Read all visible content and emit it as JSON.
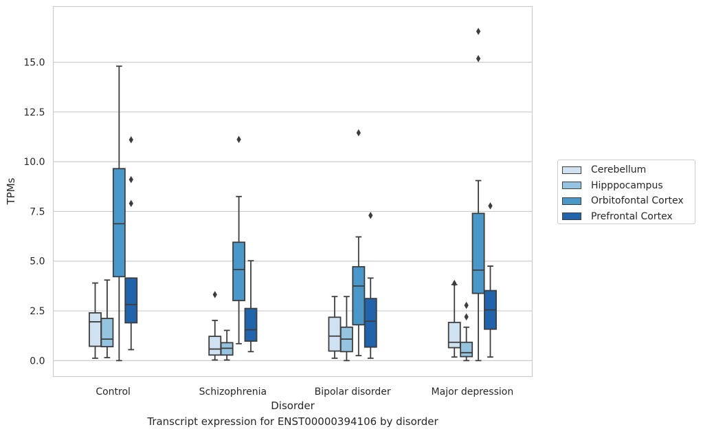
{
  "chart_data": {
    "type": "box",
    "title": "",
    "caption": "Transcript expression for ENST00000394106 by disorder",
    "xlabel": "Disorder",
    "ylabel": "TPMs",
    "ylim": [
      -0.8,
      17.8
    ],
    "yticks": [
      "0.0",
      "2.5",
      "5.0",
      "7.5",
      "10.0",
      "12.5",
      "15.0"
    ],
    "grid": "horizontal",
    "legend_position": "right",
    "categories": [
      "Control",
      "Schizophrenia",
      "Bipolar disorder",
      "Major depression"
    ],
    "series": [
      {
        "name": "Cerebellum",
        "color": "#d0e1f2",
        "boxes": [
          {
            "min": 0.12,
            "q1": 0.72,
            "median": 1.95,
            "q3": 2.4,
            "max": 3.9,
            "outliers": []
          },
          {
            "min": 0.03,
            "q1": 0.28,
            "median": 0.58,
            "q3": 1.22,
            "max": 2.02,
            "outliers": [
              3.32
            ]
          },
          {
            "min": 0.12,
            "q1": 0.48,
            "median": 1.23,
            "q3": 2.18,
            "max": 3.22,
            "outliers": []
          },
          {
            "min": 0.18,
            "q1": 0.65,
            "median": 0.92,
            "q3": 1.92,
            "max": 3.82,
            "outliers": [
              3.88
            ]
          }
        ]
      },
      {
        "name": "Hipppocampus",
        "color": "#94c4df",
        "boxes": [
          {
            "min": 0.15,
            "q1": 0.7,
            "median": 1.08,
            "q3": 2.12,
            "max": 4.05,
            "outliers": []
          },
          {
            "min": 0.03,
            "q1": 0.28,
            "median": 0.62,
            "q3": 0.9,
            "max": 1.52,
            "outliers": []
          },
          {
            "min": 0.0,
            "q1": 0.45,
            "median": 1.08,
            "q3": 1.68,
            "max": 3.22,
            "outliers": []
          },
          {
            "min": 0.0,
            "q1": 0.2,
            "median": 0.4,
            "q3": 0.92,
            "max": 1.68,
            "outliers": [
              2.78,
              2.2
            ]
          }
        ]
      },
      {
        "name": "Orbitofontal Cortex",
        "color": "#4a98c9",
        "boxes": [
          {
            "min": 0.0,
            "q1": 4.22,
            "median": 6.88,
            "q3": 9.65,
            "max": 14.8,
            "outliers": []
          },
          {
            "min": 0.85,
            "q1": 3.02,
            "median": 4.58,
            "q3": 5.95,
            "max": 8.25,
            "outliers": [
              11.12
            ]
          },
          {
            "min": 0.25,
            "q1": 1.8,
            "median": 3.75,
            "q3": 4.72,
            "max": 6.22,
            "outliers": [
              11.45
            ]
          },
          {
            "min": 0.0,
            "q1": 3.38,
            "median": 4.55,
            "q3": 7.4,
            "max": 9.05,
            "outliers": [
              15.18,
              16.55
            ]
          }
        ]
      },
      {
        "name": "Prefrontal Cortex",
        "color": "#2164ab",
        "boxes": [
          {
            "min": 0.55,
            "q1": 1.9,
            "median": 2.82,
            "q3": 4.15,
            "max": 4.15,
            "outliers": [
              7.9,
              9.1,
              11.1
            ]
          },
          {
            "min": 0.45,
            "q1": 0.98,
            "median": 1.55,
            "q3": 2.62,
            "max": 5.02,
            "outliers": []
          },
          {
            "min": 0.12,
            "q1": 0.68,
            "median": 1.98,
            "q3": 3.12,
            "max": 4.15,
            "outliers": [
              7.3
            ]
          },
          {
            "min": 0.18,
            "q1": 1.58,
            "median": 2.55,
            "q3": 3.52,
            "max": 4.75,
            "outliers": [
              7.78
            ]
          }
        ]
      }
    ]
  }
}
